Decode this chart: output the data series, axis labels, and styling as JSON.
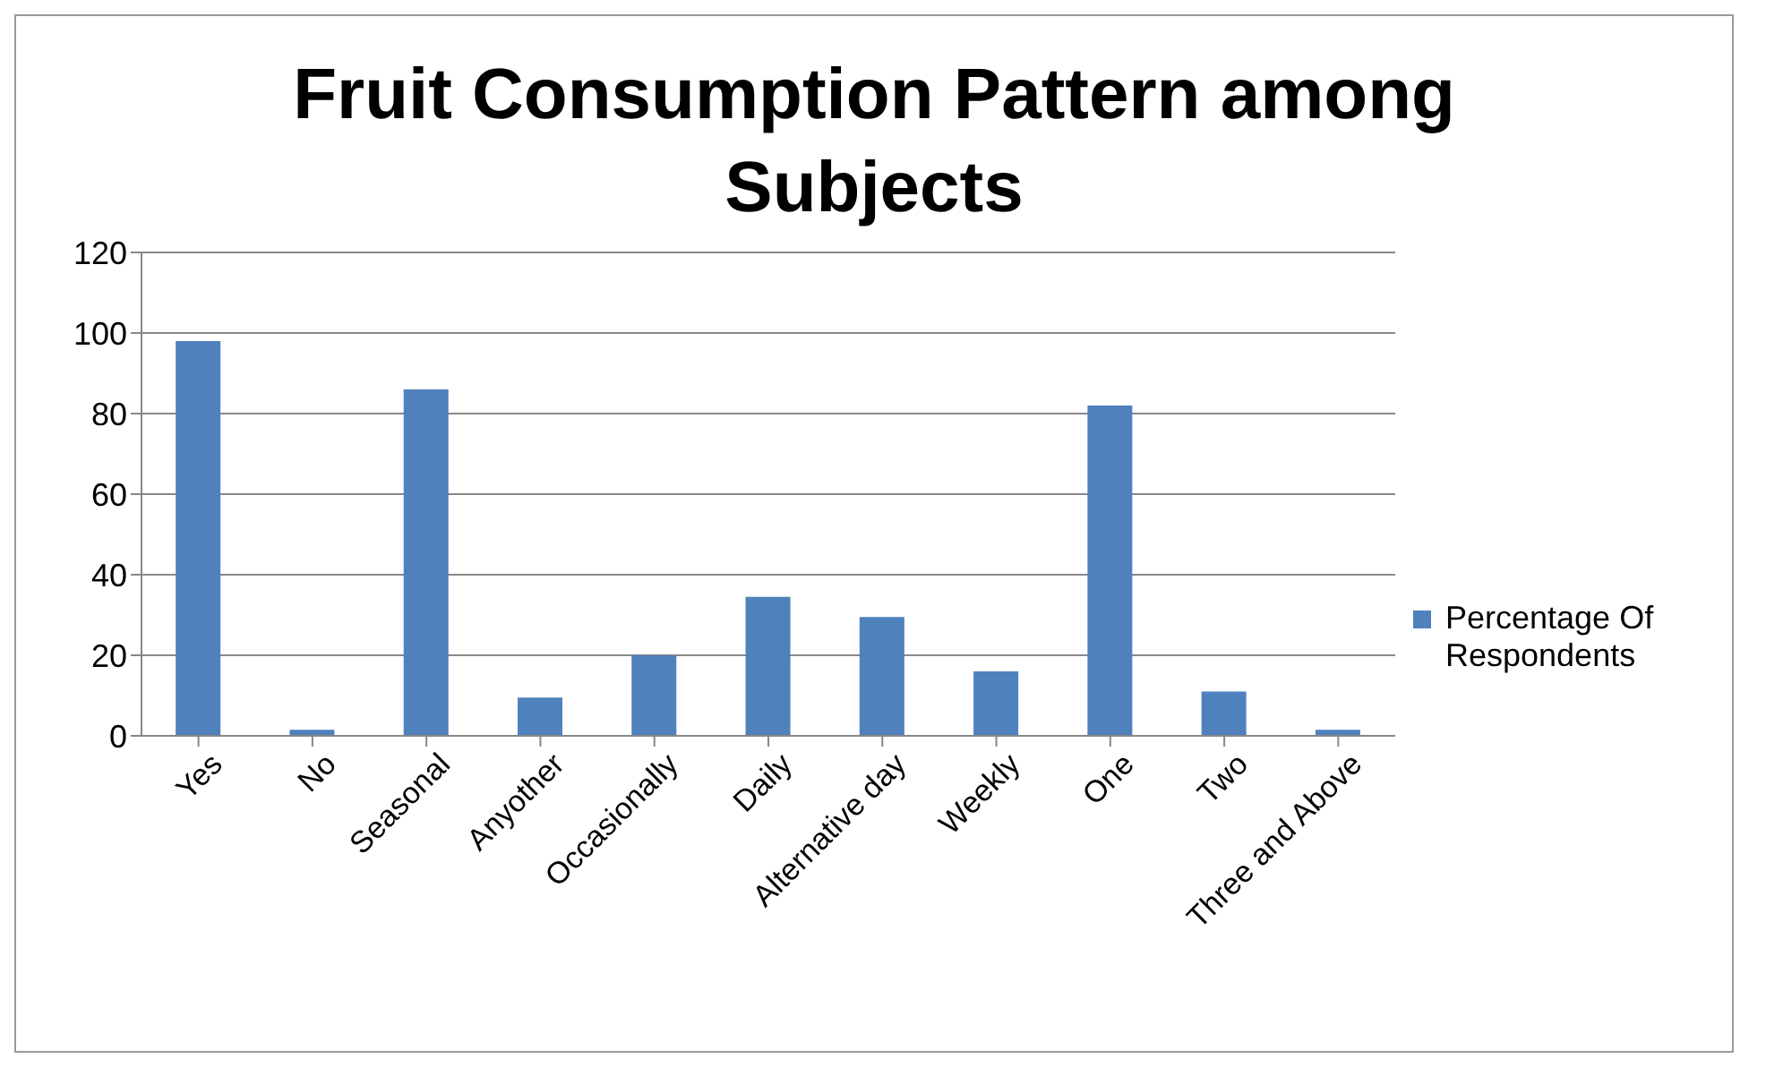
{
  "chart_data": {
    "type": "bar",
    "title": "Fruit Consumption Pattern among Subjects",
    "categories": [
      "Yes",
      "No",
      "Seasonal",
      "Anyother",
      "Occasionally",
      "Daily",
      "Alternative day",
      "Weekly",
      "One",
      "Two",
      "Three and Above"
    ],
    "series": [
      {
        "name": "Percentage Of Respondents",
        "color": "#4f81bd",
        "values": [
          98,
          1.5,
          86,
          9.5,
          20,
          34.5,
          29.5,
          16,
          82,
          11,
          1.5
        ]
      }
    ],
    "ylim": [
      0,
      120
    ],
    "yticks": [
      0,
      20,
      40,
      60,
      80,
      100,
      120
    ],
    "grid": "y",
    "legend": "right"
  }
}
